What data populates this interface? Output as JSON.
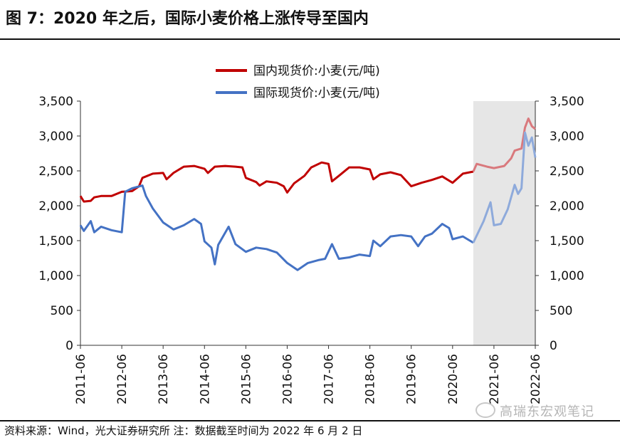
{
  "title": "图 7：2020 年之后，国际小麦价格上涨传导至国内",
  "source": "资料来源：Wind，光大证券研究所  注：数据截至时间为 2022 年 6 月 2 日",
  "watermark": "高瑞东宏观笔记",
  "chart_data": {
    "type": "line",
    "y_left": {
      "min": 0,
      "max": 3500,
      "ticks": [
        0,
        500,
        1000,
        1500,
        2000,
        2500,
        3000,
        3500
      ],
      "tick_labels": [
        "0",
        "500",
        "1,000",
        "1,500",
        "2,000",
        "2,500",
        "3,000",
        "3,500"
      ]
    },
    "y_right": {
      "min": 0,
      "max": 3500,
      "ticks": [
        0,
        500,
        1000,
        1500,
        2000,
        2500,
        3000,
        3500
      ],
      "tick_labels": [
        "0",
        "500",
        "1,000",
        "1,500",
        "2,000",
        "2,500",
        "3,000",
        "3,500"
      ]
    },
    "x_tick_labels": [
      "2011-06",
      "2012-06",
      "2013-06",
      "2014-06",
      "2015-06",
      "2016-06",
      "2017-06",
      "2018-06",
      "2019-06",
      "2020-06",
      "2021-06",
      "2022-06"
    ],
    "x_range": [
      "2011-06",
      "2022-06"
    ],
    "shaded_region": {
      "from": "2020-12",
      "to": "2022-06",
      "color": "#e6e6e6"
    },
    "legend_position": "top-center",
    "series": [
      {
        "name": "国内现货价:小麦(元/吨)",
        "color": "#c00000",
        "highlight_color": "#d9797d",
        "points": [
          [
            "2011-06",
            2140
          ],
          [
            "2011-07",
            2060
          ],
          [
            "2011-09",
            2070
          ],
          [
            "2011-10",
            2120
          ],
          [
            "2011-12",
            2140
          ],
          [
            "2012-03",
            2140
          ],
          [
            "2012-06",
            2200
          ],
          [
            "2012-09",
            2210
          ],
          [
            "2012-11",
            2280
          ],
          [
            "2012-12",
            2400
          ],
          [
            "2013-03",
            2460
          ],
          [
            "2013-06",
            2470
          ],
          [
            "2013-07",
            2380
          ],
          [
            "2013-09",
            2470
          ],
          [
            "2013-12",
            2560
          ],
          [
            "2014-03",
            2570
          ],
          [
            "2014-06",
            2530
          ],
          [
            "2014-07",
            2470
          ],
          [
            "2014-09",
            2560
          ],
          [
            "2014-12",
            2570
          ],
          [
            "2015-03",
            2560
          ],
          [
            "2015-05",
            2550
          ],
          [
            "2015-06",
            2400
          ],
          [
            "2015-09",
            2340
          ],
          [
            "2015-10",
            2290
          ],
          [
            "2015-12",
            2350
          ],
          [
            "2016-03",
            2330
          ],
          [
            "2016-05",
            2280
          ],
          [
            "2016-06",
            2190
          ],
          [
            "2016-08",
            2320
          ],
          [
            "2016-11",
            2430
          ],
          [
            "2017-01",
            2550
          ],
          [
            "2017-04",
            2620
          ],
          [
            "2017-06",
            2600
          ],
          [
            "2017-07",
            2350
          ],
          [
            "2017-09",
            2430
          ],
          [
            "2017-12",
            2550
          ],
          [
            "2018-03",
            2550
          ],
          [
            "2018-06",
            2520
          ],
          [
            "2018-07",
            2380
          ],
          [
            "2018-09",
            2450
          ],
          [
            "2018-12",
            2480
          ],
          [
            "2019-03",
            2440
          ],
          [
            "2019-06",
            2280
          ],
          [
            "2019-09",
            2330
          ],
          [
            "2019-12",
            2370
          ],
          [
            "2020-03",
            2420
          ],
          [
            "2020-06",
            2330
          ],
          [
            "2020-09",
            2460
          ],
          [
            "2020-12",
            2490
          ],
          [
            "2021-01",
            2600
          ],
          [
            "2021-04",
            2560
          ],
          [
            "2021-06",
            2540
          ],
          [
            "2021-09",
            2570
          ],
          [
            "2021-11",
            2680
          ],
          [
            "2021-12",
            2790
          ],
          [
            "2022-02",
            2820
          ],
          [
            "2022-03",
            3120
          ],
          [
            "2022-04",
            3250
          ],
          [
            "2022-05",
            3140
          ],
          [
            "2022-06",
            3100
          ]
        ]
      },
      {
        "name": "国际现货价:小麦(元/吨)",
        "color": "#4472c4",
        "highlight_color": "#8eaadb",
        "points": [
          [
            "2011-06",
            1720
          ],
          [
            "2011-07",
            1640
          ],
          [
            "2011-09",
            1780
          ],
          [
            "2011-10",
            1620
          ],
          [
            "2011-12",
            1700
          ],
          [
            "2012-03",
            1650
          ],
          [
            "2012-06",
            1620
          ],
          [
            "2012-07",
            2200
          ],
          [
            "2012-09",
            2250
          ],
          [
            "2012-12",
            2290
          ],
          [
            "2013-01",
            2140
          ],
          [
            "2013-03",
            1960
          ],
          [
            "2013-06",
            1760
          ],
          [
            "2013-09",
            1660
          ],
          [
            "2013-12",
            1720
          ],
          [
            "2014-03",
            1810
          ],
          [
            "2014-05",
            1740
          ],
          [
            "2014-06",
            1490
          ],
          [
            "2014-08",
            1400
          ],
          [
            "2014-09",
            1160
          ],
          [
            "2014-10",
            1440
          ],
          [
            "2015-01",
            1700
          ],
          [
            "2015-03",
            1450
          ],
          [
            "2015-06",
            1340
          ],
          [
            "2015-09",
            1400
          ],
          [
            "2015-12",
            1380
          ],
          [
            "2016-03",
            1330
          ],
          [
            "2016-06",
            1180
          ],
          [
            "2016-09",
            1080
          ],
          [
            "2016-12",
            1180
          ],
          [
            "2017-03",
            1220
          ],
          [
            "2017-05",
            1240
          ],
          [
            "2017-07",
            1450
          ],
          [
            "2017-09",
            1240
          ],
          [
            "2017-12",
            1260
          ],
          [
            "2018-03",
            1300
          ],
          [
            "2018-06",
            1280
          ],
          [
            "2018-07",
            1500
          ],
          [
            "2018-09",
            1420
          ],
          [
            "2018-12",
            1560
          ],
          [
            "2019-03",
            1580
          ],
          [
            "2019-06",
            1560
          ],
          [
            "2019-08",
            1420
          ],
          [
            "2019-10",
            1560
          ],
          [
            "2019-12",
            1600
          ],
          [
            "2020-03",
            1740
          ],
          [
            "2020-05",
            1680
          ],
          [
            "2020-06",
            1520
          ],
          [
            "2020-09",
            1560
          ],
          [
            "2020-12",
            1470
          ],
          [
            "2021-03",
            1780
          ],
          [
            "2021-05",
            2050
          ],
          [
            "2021-06",
            1720
          ],
          [
            "2021-08",
            1740
          ],
          [
            "2021-10",
            1950
          ],
          [
            "2021-12",
            2300
          ],
          [
            "2022-01",
            2170
          ],
          [
            "2022-02",
            2250
          ],
          [
            "2022-03",
            3050
          ],
          [
            "2022-04",
            2860
          ],
          [
            "2022-05",
            2980
          ],
          [
            "2022-06",
            2690
          ]
        ]
      }
    ]
  }
}
